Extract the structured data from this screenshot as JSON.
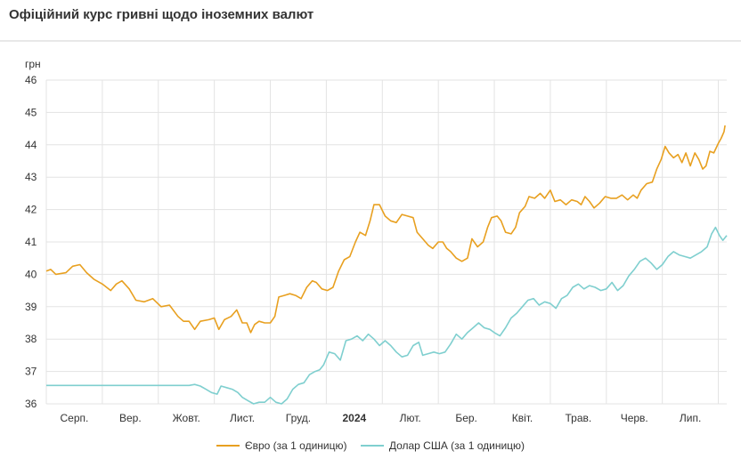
{
  "title": "Офіційний курс гривні щодо іноземних валют",
  "chart_data": {
    "type": "line",
    "ylabel": "грн",
    "ylim": [
      36,
      46
    ],
    "yticks": [
      36,
      37,
      38,
      39,
      40,
      41,
      42,
      43,
      44,
      45,
      46
    ],
    "xlim": [
      0,
      12.15
    ],
    "month_ticks": [
      {
        "label": "Серп.",
        "x": 0.5,
        "bold": false
      },
      {
        "label": "Вер.",
        "x": 1.5,
        "bold": false
      },
      {
        "label": "Жовт.",
        "x": 2.5,
        "bold": false
      },
      {
        "label": "Лист.",
        "x": 3.5,
        "bold": false
      },
      {
        "label": "Груд.",
        "x": 4.5,
        "bold": false
      },
      {
        "label": "2024",
        "x": 5.5,
        "bold": true
      },
      {
        "label": "Лют.",
        "x": 6.5,
        "bold": false
      },
      {
        "label": "Бер.",
        "x": 7.5,
        "bold": false
      },
      {
        "label": "Квіт.",
        "x": 8.5,
        "bold": false
      },
      {
        "label": "Трав.",
        "x": 9.5,
        "bold": false
      },
      {
        "label": "Черв.",
        "x": 10.5,
        "bold": false
      },
      {
        "label": "Лип.",
        "x": 11.5,
        "bold": false
      }
    ],
    "grid": true,
    "legend_position": "bottom",
    "series": [
      {
        "name": "Євро (за 1 одиницю)",
        "color": "#e8a020",
        "points": [
          [
            0.0,
            40.1
          ],
          [
            0.08,
            40.15
          ],
          [
            0.17,
            40.0
          ],
          [
            0.35,
            40.05
          ],
          [
            0.47,
            40.25
          ],
          [
            0.6,
            40.3
          ],
          [
            0.72,
            40.05
          ],
          [
            0.85,
            39.85
          ],
          [
            1.0,
            39.7
          ],
          [
            1.15,
            39.5
          ],
          [
            1.25,
            39.7
          ],
          [
            1.35,
            39.8
          ],
          [
            1.48,
            39.55
          ],
          [
            1.6,
            39.2
          ],
          [
            1.75,
            39.15
          ],
          [
            1.9,
            39.25
          ],
          [
            2.05,
            39.0
          ],
          [
            2.2,
            39.05
          ],
          [
            2.35,
            38.7
          ],
          [
            2.45,
            38.55
          ],
          [
            2.55,
            38.55
          ],
          [
            2.65,
            38.3
          ],
          [
            2.75,
            38.55
          ],
          [
            2.9,
            38.6
          ],
          [
            3.0,
            38.65
          ],
          [
            3.08,
            38.3
          ],
          [
            3.18,
            38.6
          ],
          [
            3.3,
            38.7
          ],
          [
            3.4,
            38.9
          ],
          [
            3.5,
            38.5
          ],
          [
            3.58,
            38.5
          ],
          [
            3.65,
            38.2
          ],
          [
            3.72,
            38.45
          ],
          [
            3.8,
            38.55
          ],
          [
            3.9,
            38.5
          ],
          [
            4.0,
            38.5
          ],
          [
            4.08,
            38.7
          ],
          [
            4.15,
            39.3
          ],
          [
            4.25,
            39.35
          ],
          [
            4.35,
            39.4
          ],
          [
            4.45,
            39.35
          ],
          [
            4.55,
            39.25
          ],
          [
            4.65,
            39.6
          ],
          [
            4.75,
            39.8
          ],
          [
            4.82,
            39.75
          ],
          [
            4.92,
            39.55
          ],
          [
            5.02,
            39.5
          ],
          [
            5.12,
            39.6
          ],
          [
            5.22,
            40.1
          ],
          [
            5.32,
            40.45
          ],
          [
            5.42,
            40.55
          ],
          [
            5.52,
            41.0
          ],
          [
            5.6,
            41.3
          ],
          [
            5.7,
            41.2
          ],
          [
            5.78,
            41.65
          ],
          [
            5.85,
            42.15
          ],
          [
            5.95,
            42.15
          ],
          [
            6.05,
            41.8
          ],
          [
            6.15,
            41.65
          ],
          [
            6.25,
            41.6
          ],
          [
            6.35,
            41.85
          ],
          [
            6.45,
            41.8
          ],
          [
            6.55,
            41.75
          ],
          [
            6.62,
            41.3
          ],
          [
            6.72,
            41.1
          ],
          [
            6.82,
            40.9
          ],
          [
            6.9,
            40.8
          ],
          [
            7.0,
            41.0
          ],
          [
            7.08,
            41.0
          ],
          [
            7.15,
            40.8
          ],
          [
            7.22,
            40.7
          ],
          [
            7.32,
            40.5
          ],
          [
            7.42,
            40.4
          ],
          [
            7.52,
            40.5
          ],
          [
            7.6,
            41.1
          ],
          [
            7.7,
            40.85
          ],
          [
            7.8,
            41.0
          ],
          [
            7.88,
            41.45
          ],
          [
            7.95,
            41.75
          ],
          [
            8.05,
            41.8
          ],
          [
            8.12,
            41.65
          ],
          [
            8.2,
            41.3
          ],
          [
            8.3,
            41.25
          ],
          [
            8.38,
            41.45
          ],
          [
            8.45,
            41.9
          ],
          [
            8.55,
            42.1
          ],
          [
            8.62,
            42.4
          ],
          [
            8.72,
            42.35
          ],
          [
            8.82,
            42.5
          ],
          [
            8.9,
            42.35
          ],
          [
            9.0,
            42.6
          ],
          [
            9.08,
            42.25
          ],
          [
            9.18,
            42.3
          ],
          [
            9.28,
            42.15
          ],
          [
            9.38,
            42.3
          ],
          [
            9.48,
            42.25
          ],
          [
            9.55,
            42.15
          ],
          [
            9.62,
            42.4
          ],
          [
            9.7,
            42.25
          ],
          [
            9.78,
            42.05
          ],
          [
            9.88,
            42.2
          ],
          [
            9.98,
            42.4
          ],
          [
            10.08,
            42.35
          ],
          [
            10.18,
            42.35
          ],
          [
            10.28,
            42.45
          ],
          [
            10.38,
            42.3
          ],
          [
            10.48,
            42.45
          ],
          [
            10.55,
            42.35
          ],
          [
            10.62,
            42.6
          ],
          [
            10.72,
            42.8
          ],
          [
            10.82,
            42.85
          ],
          [
            10.9,
            43.25
          ],
          [
            10.98,
            43.55
          ],
          [
            11.05,
            43.95
          ],
          [
            11.12,
            43.75
          ],
          [
            11.2,
            43.6
          ],
          [
            11.28,
            43.7
          ],
          [
            11.35,
            43.45
          ],
          [
            11.42,
            43.75
          ],
          [
            11.5,
            43.35
          ],
          [
            11.58,
            43.75
          ],
          [
            11.65,
            43.55
          ],
          [
            11.72,
            43.25
          ],
          [
            11.78,
            43.35
          ],
          [
            11.85,
            43.8
          ],
          [
            11.92,
            43.75
          ],
          [
            12.0,
            44.05
          ],
          [
            12.05,
            44.2
          ],
          [
            12.1,
            44.4
          ],
          [
            12.12,
            44.6
          ]
        ],
        "notes": "points use month index (0 = Aug 2023 start) as x"
      },
      {
        "name": "Долар США (за 1 одиницю)",
        "color": "#7fcfcf",
        "points": [
          [
            0.0,
            36.57
          ],
          [
            2.0,
            36.57
          ],
          [
            2.55,
            36.57
          ],
          [
            2.65,
            36.6
          ],
          [
            2.75,
            36.55
          ],
          [
            2.85,
            36.45
          ],
          [
            2.95,
            36.35
          ],
          [
            3.05,
            36.3
          ],
          [
            3.12,
            36.55
          ],
          [
            3.22,
            36.5
          ],
          [
            3.32,
            36.45
          ],
          [
            3.42,
            36.35
          ],
          [
            3.5,
            36.2
          ],
          [
            3.6,
            36.1
          ],
          [
            3.7,
            36.0
          ],
          [
            3.8,
            36.05
          ],
          [
            3.9,
            36.05
          ],
          [
            4.0,
            36.2
          ],
          [
            4.1,
            36.05
          ],
          [
            4.2,
            36.0
          ],
          [
            4.3,
            36.15
          ],
          [
            4.4,
            36.45
          ],
          [
            4.5,
            36.6
          ],
          [
            4.6,
            36.65
          ],
          [
            4.7,
            36.9
          ],
          [
            4.8,
            37.0
          ],
          [
            4.88,
            37.05
          ],
          [
            4.95,
            37.2
          ],
          [
            5.05,
            37.6
          ],
          [
            5.15,
            37.55
          ],
          [
            5.25,
            37.35
          ],
          [
            5.35,
            37.95
          ],
          [
            5.45,
            38.0
          ],
          [
            5.55,
            38.1
          ],
          [
            5.65,
            37.95
          ],
          [
            5.75,
            38.15
          ],
          [
            5.85,
            38.0
          ],
          [
            5.95,
            37.8
          ],
          [
            6.05,
            37.95
          ],
          [
            6.15,
            37.8
          ],
          [
            6.25,
            37.6
          ],
          [
            6.35,
            37.45
          ],
          [
            6.45,
            37.5
          ],
          [
            6.55,
            37.8
          ],
          [
            6.65,
            37.9
          ],
          [
            6.72,
            37.5
          ],
          [
            6.82,
            37.55
          ],
          [
            6.92,
            37.6
          ],
          [
            7.02,
            37.55
          ],
          [
            7.12,
            37.6
          ],
          [
            7.22,
            37.85
          ],
          [
            7.32,
            38.15
          ],
          [
            7.42,
            38.0
          ],
          [
            7.52,
            38.2
          ],
          [
            7.62,
            38.35
          ],
          [
            7.72,
            38.5
          ],
          [
            7.82,
            38.35
          ],
          [
            7.92,
            38.3
          ],
          [
            8.0,
            38.2
          ],
          [
            8.1,
            38.1
          ],
          [
            8.2,
            38.35
          ],
          [
            8.3,
            38.65
          ],
          [
            8.4,
            38.8
          ],
          [
            8.5,
            39.0
          ],
          [
            8.6,
            39.2
          ],
          [
            8.7,
            39.25
          ],
          [
            8.8,
            39.05
          ],
          [
            8.9,
            39.15
          ],
          [
            9.0,
            39.1
          ],
          [
            9.1,
            38.95
          ],
          [
            9.2,
            39.25
          ],
          [
            9.3,
            39.35
          ],
          [
            9.4,
            39.6
          ],
          [
            9.5,
            39.7
          ],
          [
            9.6,
            39.55
          ],
          [
            9.7,
            39.65
          ],
          [
            9.8,
            39.6
          ],
          [
            9.9,
            39.5
          ],
          [
            10.0,
            39.55
          ],
          [
            10.1,
            39.75
          ],
          [
            10.2,
            39.5
          ],
          [
            10.3,
            39.65
          ],
          [
            10.4,
            39.95
          ],
          [
            10.5,
            40.15
          ],
          [
            10.6,
            40.4
          ],
          [
            10.7,
            40.5
          ],
          [
            10.8,
            40.35
          ],
          [
            10.9,
            40.15
          ],
          [
            11.0,
            40.3
          ],
          [
            11.1,
            40.55
          ],
          [
            11.2,
            40.7
          ],
          [
            11.3,
            40.6
          ],
          [
            11.4,
            40.55
          ],
          [
            11.5,
            40.5
          ],
          [
            11.6,
            40.6
          ],
          [
            11.7,
            40.7
          ],
          [
            11.8,
            40.85
          ],
          [
            11.88,
            41.25
          ],
          [
            11.95,
            41.45
          ],
          [
            12.02,
            41.2
          ],
          [
            12.08,
            41.05
          ],
          [
            12.15,
            41.2
          ]
        ],
        "notes": "points use month index (0 = Aug 2023 start) as x"
      }
    ]
  },
  "legend": {
    "items": [
      {
        "label": "Євро (за 1 одиницю)",
        "color": "#e8a020"
      },
      {
        "label": "Долар США (за 1 одиницю)",
        "color": "#7fcfcf"
      }
    ]
  }
}
